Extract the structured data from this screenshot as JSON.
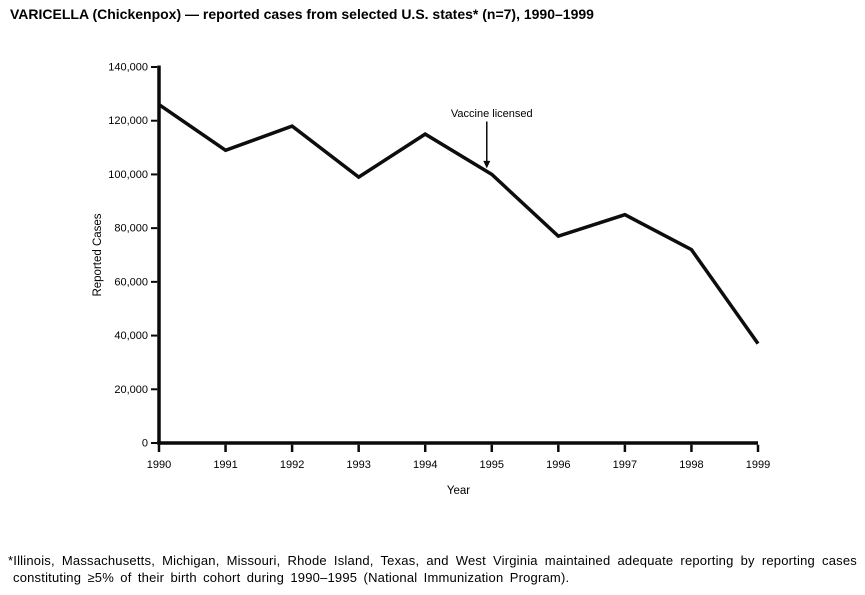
{
  "title": "VARICELLA (Chickenpox) — reported cases from selected U.S. states* (n=7), 1990–1999",
  "footnote": {
    "line1": "*Illinois, Massachusetts, Michigan, Missouri, Rhode Island, Texas, and West Virginia maintained adequate reporting by reporting cases",
    "line2": "constituting ≥5% of their birth cohort during 1990–1995 (National Immunization Program)."
  },
  "chart_data": {
    "type": "line",
    "title": "VARICELLA (Chickenpox) — reported cases from selected U.S. states* (n=7), 1990–1999",
    "xlabel": "Year",
    "ylabel": "Reported Cases",
    "x": [
      1990,
      1991,
      1992,
      1993,
      1994,
      1995,
      1996,
      1997,
      1998,
      1999
    ],
    "values": [
      126000,
      109000,
      118000,
      99000,
      115000,
      100000,
      77000,
      85000,
      72000,
      37000
    ],
    "xlim": [
      1990,
      1999
    ],
    "ylim": [
      0,
      140000
    ],
    "ytick_step": 20000,
    "ytick_labels": [
      "0",
      "20,000",
      "40,000",
      "60,000",
      "80,000",
      "100,000",
      "120,000",
      "140,000"
    ],
    "grid": false,
    "legend": "none",
    "annotation": {
      "text": "Vaccine licensed",
      "target_year": 1995,
      "target_value": 100000
    },
    "line_color": "#0d0d0d",
    "axis_color": "#0a0a0a",
    "background": "#ffffff"
  },
  "colors": {
    "text": "#000000",
    "background": "#ffffff",
    "line": "#0d0d0d"
  }
}
